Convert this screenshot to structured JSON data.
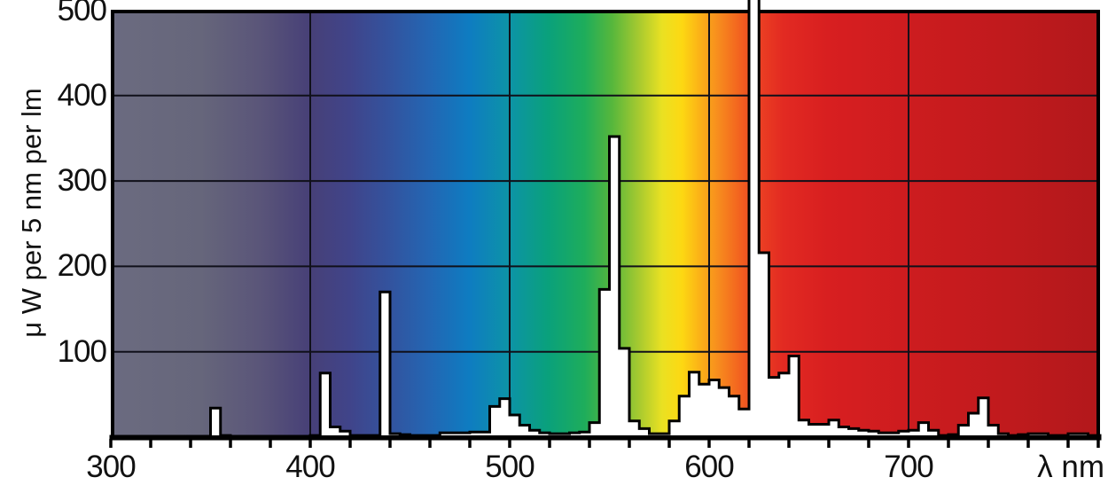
{
  "y_axis": {
    "title": "μ W per 5 nm per lm",
    "ticks": [
      100,
      200,
      300,
      400,
      500
    ],
    "max": 500,
    "min": 0
  },
  "x_axis": {
    "unit_label": "λ nm",
    "labels": [
      300,
      400,
      500,
      600,
      700
    ],
    "gridline_nm": [
      400,
      500,
      600,
      700
    ],
    "minor_tick_step_nm": 20,
    "range_nm": [
      300,
      797
    ]
  },
  "chart_data": {
    "type": "bar",
    "subtype": "spectral-power-distribution-histogram",
    "title": "",
    "xlabel": "λ nm",
    "ylabel": "μ W per 5 nm per lm",
    "ylim": [
      0,
      500
    ],
    "grid": true,
    "bin_width_nm": 5,
    "x_start_nm": 300,
    "bin_start_nm": [
      300,
      305,
      310,
      315,
      320,
      325,
      330,
      335,
      340,
      345,
      350,
      355,
      360,
      365,
      370,
      375,
      380,
      385,
      390,
      395,
      400,
      405,
      410,
      415,
      420,
      425,
      430,
      435,
      440,
      445,
      450,
      455,
      460,
      465,
      470,
      475,
      480,
      485,
      490,
      495,
      500,
      505,
      510,
      515,
      520,
      525,
      530,
      535,
      540,
      545,
      550,
      555,
      560,
      565,
      570,
      575,
      580,
      585,
      590,
      595,
      600,
      605,
      610,
      615,
      620,
      625,
      630,
      635,
      640,
      645,
      650,
      655,
      660,
      665,
      670,
      675,
      680,
      685,
      690,
      695,
      700,
      705,
      710,
      715,
      720,
      725,
      730,
      735,
      740,
      745,
      750,
      755,
      760,
      765,
      770,
      775,
      780,
      785,
      790,
      795
    ],
    "values": [
      1,
      1,
      1,
      1,
      1,
      1,
      1,
      1,
      1,
      1,
      34,
      2,
      1,
      1,
      1,
      1,
      1,
      1,
      1,
      1,
      2,
      75,
      12,
      7,
      2,
      2,
      2,
      170,
      4,
      3,
      2,
      2,
      2,
      5,
      5,
      5,
      6,
      6,
      36,
      45,
      26,
      14,
      8,
      5,
      4,
      4,
      5,
      6,
      17,
      173,
      352,
      104,
      19,
      10,
      4,
      4,
      19,
      48,
      76,
      62,
      67,
      58,
      48,
      33,
      520,
      216,
      70,
      75,
      95,
      20,
      15,
      15,
      20,
      12,
      10,
      8,
      7,
      5,
      5,
      7,
      8,
      17,
      8,
      2,
      3,
      14,
      28,
      46,
      14,
      4,
      2,
      3,
      4,
      4,
      2,
      2,
      4,
      4,
      2,
      2
    ],
    "clipped_bins": [
      {
        "start_nm": 620,
        "note": "peak exceeds chart maximum of 500 and is clipped through the top border"
      }
    ],
    "bar_fill": "#ffffff",
    "bar_outline": "#000000",
    "legend": null,
    "background_gradient_stops": [
      {
        "nm": 300,
        "color": "#6b6b80"
      },
      {
        "nm": 345,
        "color": "#66667b"
      },
      {
        "nm": 375,
        "color": "#5a5579"
      },
      {
        "nm": 400,
        "color": "#474077"
      },
      {
        "nm": 420,
        "color": "#40448a"
      },
      {
        "nm": 440,
        "color": "#33539e"
      },
      {
        "nm": 460,
        "color": "#2366b3"
      },
      {
        "nm": 480,
        "color": "#0e7cc1"
      },
      {
        "nm": 500,
        "color": "#0d93a7"
      },
      {
        "nm": 520,
        "color": "#0aa17b"
      },
      {
        "nm": 538,
        "color": "#1ead5b"
      },
      {
        "nm": 552,
        "color": "#57b73c"
      },
      {
        "nm": 565,
        "color": "#a5c930"
      },
      {
        "nm": 577,
        "color": "#eae122"
      },
      {
        "nm": 587,
        "color": "#fdd812"
      },
      {
        "nm": 596,
        "color": "#fbb117"
      },
      {
        "nm": 605,
        "color": "#f78d1e"
      },
      {
        "nm": 615,
        "color": "#f3661f"
      },
      {
        "nm": 625,
        "color": "#ec4123"
      },
      {
        "nm": 638,
        "color": "#e22a22"
      },
      {
        "nm": 660,
        "color": "#d81f20"
      },
      {
        "nm": 700,
        "color": "#cd1c1f"
      },
      {
        "nm": 750,
        "color": "#c01a1d"
      },
      {
        "nm": 797,
        "color": "#b2181b"
      }
    ]
  },
  "colors": {
    "axis_and_text": "#111111",
    "plot_border": "#000000",
    "page_background": "#ffffff"
  }
}
